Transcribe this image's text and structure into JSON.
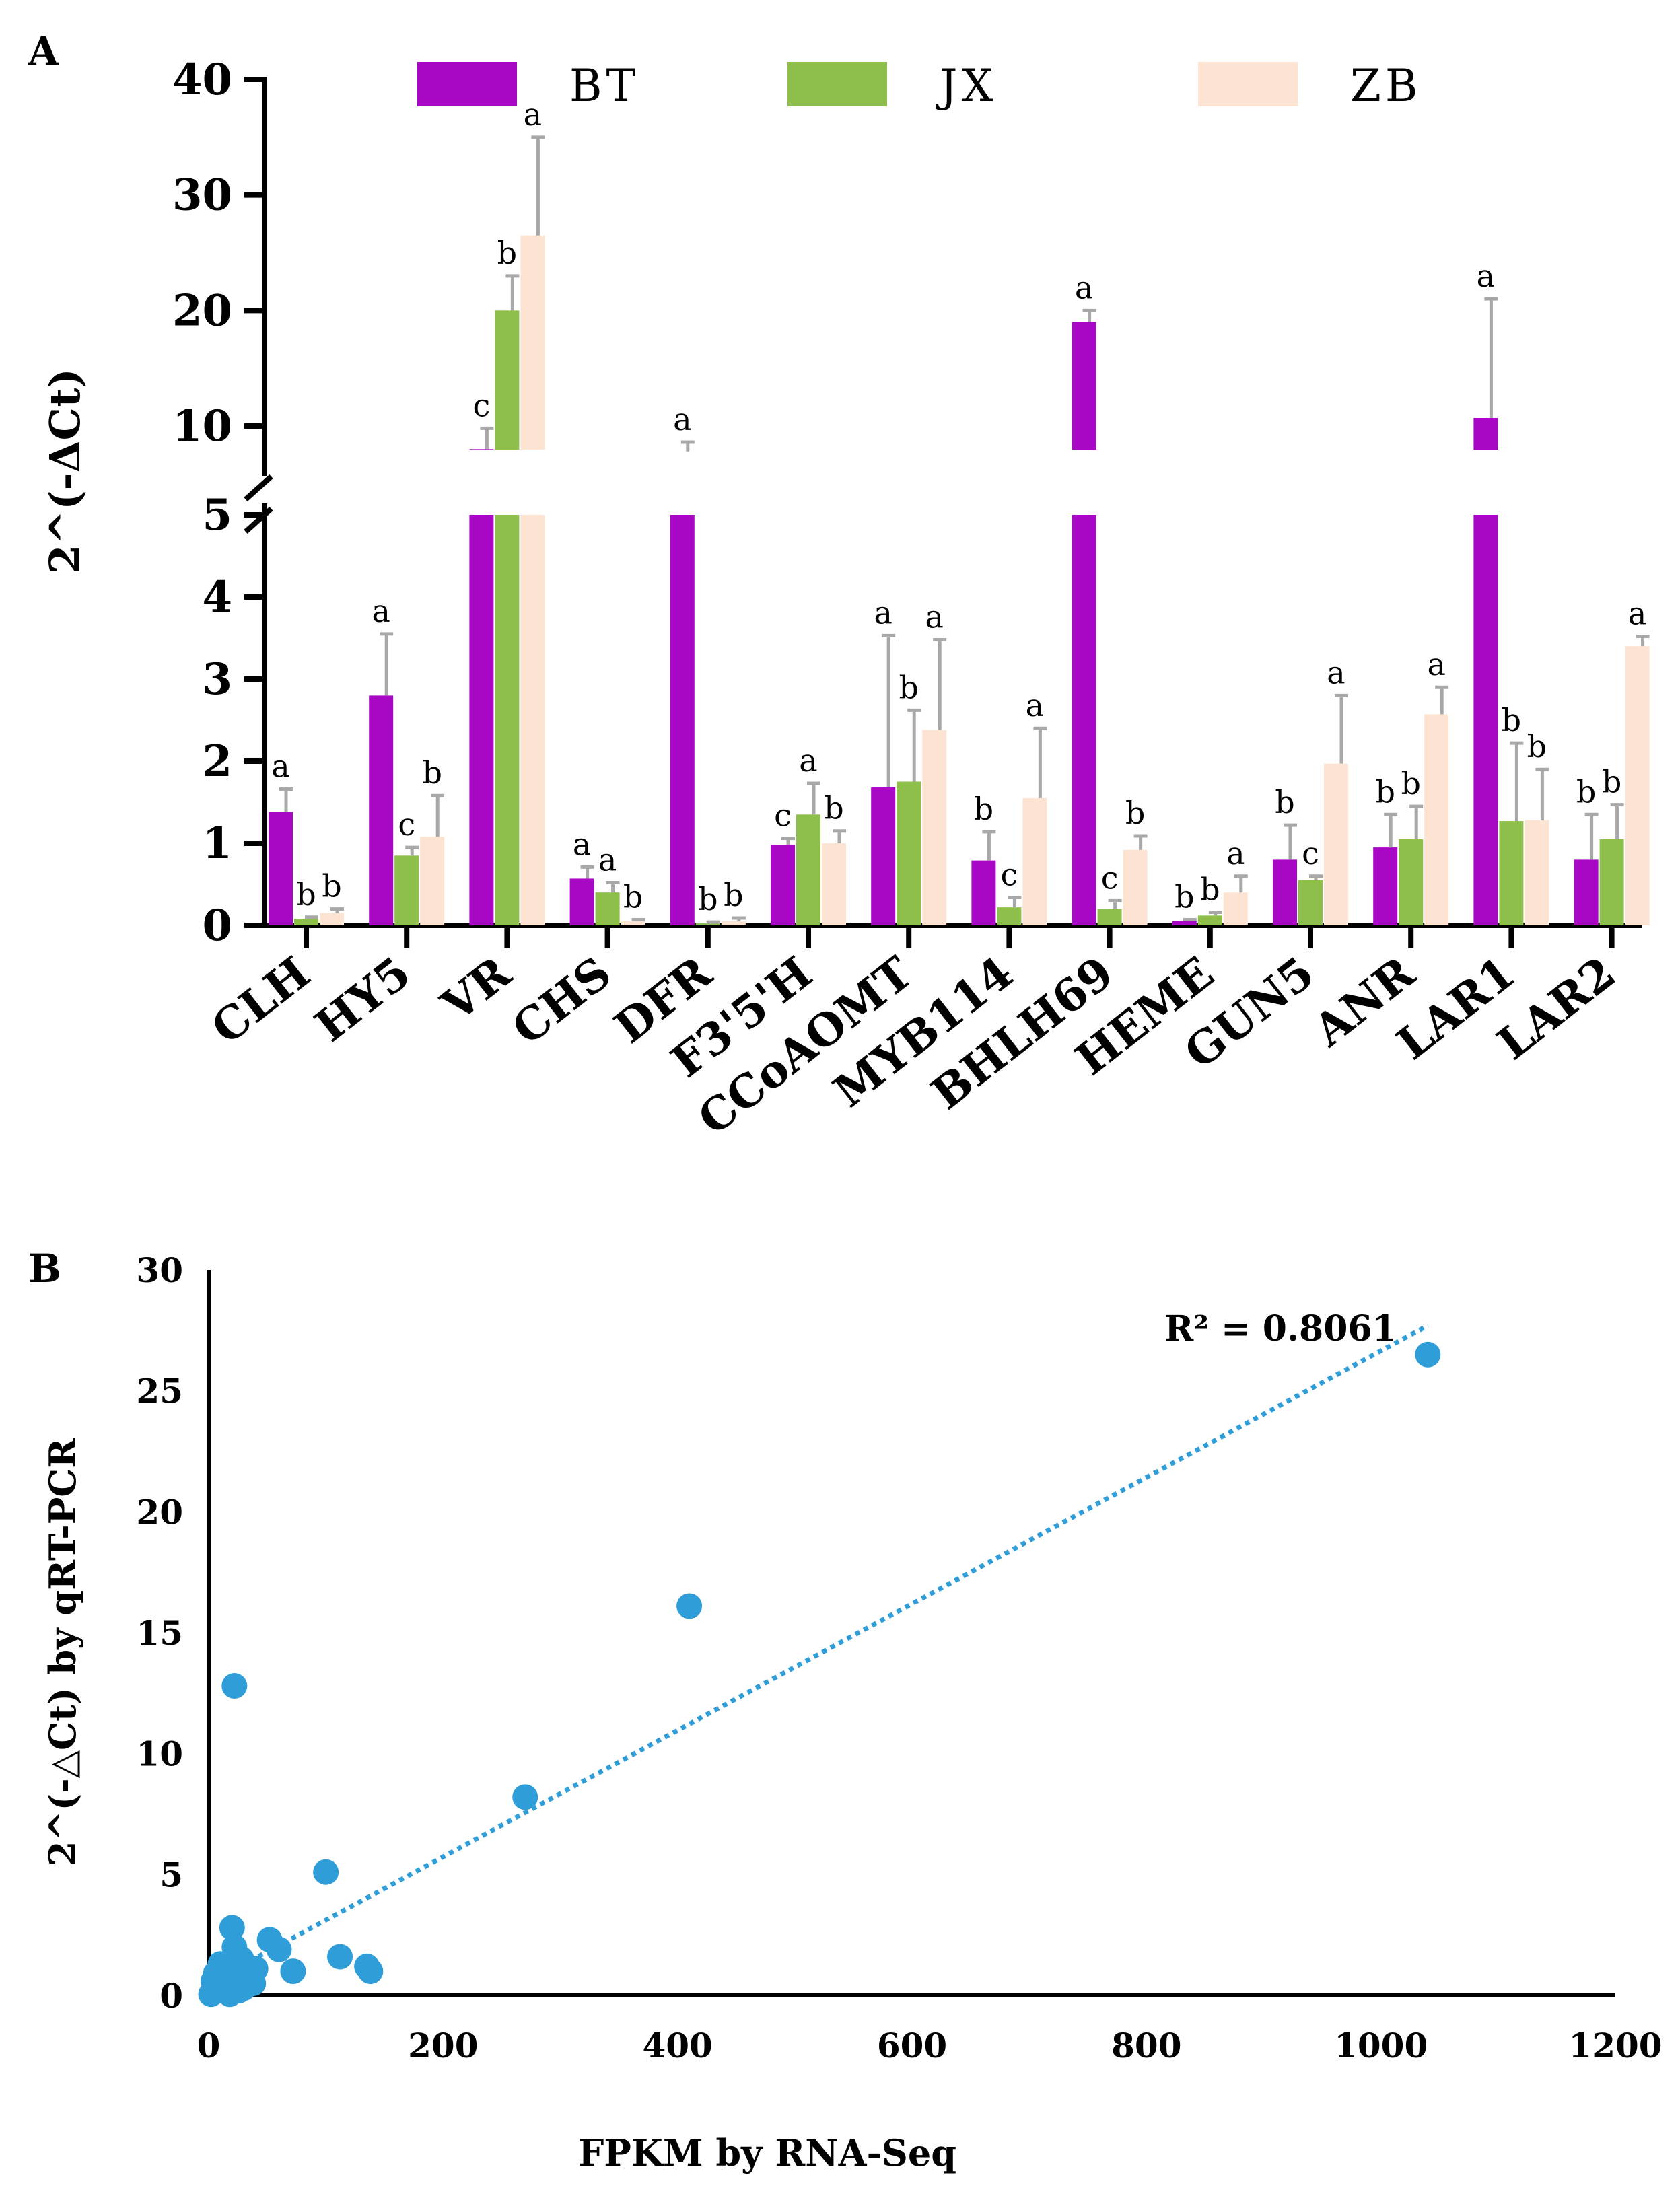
{
  "chart_data": [
    {
      "panel_label": "A",
      "type": "bar",
      "ylabel": "2^(-ΔCt)",
      "categories": [
        "CLH",
        "HY5",
        "VR",
        "CHS",
        "DFR",
        "F3'5'H",
        "CCoAOMT",
        "MYB114",
        "BHLH69",
        "HEME",
        "GUN5",
        "ANR",
        "LAR1",
        "LAR2"
      ],
      "axis_break": {
        "lower_range": [
          0,
          5
        ],
        "upper_range": [
          5,
          40
        ]
      },
      "lower_ticks": [
        "0",
        "1",
        "2",
        "3",
        "4",
        "5"
      ],
      "upper_ticks": [
        "10",
        "20",
        "30",
        "40"
      ],
      "legend": {
        "placement": "top",
        "entries": [
          "BT",
          "JX",
          "ZB"
        ]
      },
      "series": [
        {
          "name": "BT",
          "color": "#a808c6",
          "values": [
            1.38,
            2.8,
            8.0,
            0.57,
            7.8,
            0.98,
            1.68,
            0.79,
            19.0,
            0.05,
            0.8,
            0.95,
            10.7,
            0.8
          ],
          "errors": [
            0.28,
            0.75,
            1.8,
            0.14,
            0.8,
            0.08,
            1.85,
            0.35,
            1.0,
            0.02,
            0.42,
            0.4,
            10.3,
            0.55
          ],
          "letters": [
            "a",
            "a",
            "c",
            "a",
            "a",
            "c",
            "a",
            "b",
            "a",
            "b",
            "b",
            "b",
            "a",
            "b"
          ]
        },
        {
          "name": "JX",
          "color": "#8ebf4a",
          "values": [
            0.08,
            0.85,
            20.0,
            0.4,
            0.03,
            1.35,
            1.75,
            0.22,
            0.2,
            0.12,
            0.55,
            1.05,
            1.27,
            1.05
          ],
          "errors": [
            0.02,
            0.1,
            3.0,
            0.12,
            0.01,
            0.38,
            0.87,
            0.12,
            0.1,
            0.04,
            0.05,
            0.4,
            0.95,
            0.42
          ],
          "letters": [
            "b",
            "c",
            "b",
            "a",
            "b",
            "a",
            "b",
            "c",
            "c",
            "b",
            "c",
            "b",
            "b",
            "b"
          ]
        },
        {
          "name": "ZB",
          "color": "#fde3d2",
          "values": [
            0.15,
            1.08,
            26.5,
            0.05,
            0.05,
            1.0,
            2.38,
            1.55,
            0.92,
            0.4,
            1.97,
            2.57,
            1.28,
            3.4
          ],
          "errors": [
            0.05,
            0.5,
            8.5,
            0.02,
            0.04,
            0.15,
            1.1,
            0.85,
            0.17,
            0.2,
            0.83,
            0.33,
            0.62,
            0.12
          ],
          "letters": [
            "b",
            "b",
            "a",
            "b",
            "b",
            "b",
            "a",
            "a",
            "b",
            "a",
            "a",
            "a",
            "b",
            "a"
          ]
        }
      ]
    },
    {
      "panel_label": "B",
      "type": "scatter",
      "xlabel": "FPKM by RNA-Seq",
      "ylabel": "2^(-△Ct) by qRT-PCR",
      "xlim": [
        0,
        1200
      ],
      "ylim": [
        0,
        30
      ],
      "xticks": [
        "0",
        "200",
        "400",
        "600",
        "800",
        "1000",
        "1200"
      ],
      "yticks": [
        "0",
        "5",
        "10",
        "15",
        "20",
        "25",
        "30"
      ],
      "point_color": "#2f9ed8",
      "trendline": {
        "x": [
          0,
          1040
        ],
        "y": [
          0.5,
          27.7
        ],
        "color": "#2f9ed8",
        "r2_label": "R² = 0.8061"
      },
      "points": [
        [
          1040,
          26.5
        ],
        [
          410,
          16.1
        ],
        [
          22,
          12.8
        ],
        [
          270,
          8.2
        ],
        [
          100,
          5.1
        ],
        [
          20,
          2.8
        ],
        [
          52,
          2.3
        ],
        [
          60,
          1.9
        ],
        [
          22,
          2.0
        ],
        [
          112,
          1.6
        ],
        [
          135,
          1.2
        ],
        [
          138,
          1.0
        ],
        [
          72,
          1.0
        ],
        [
          28,
          1.5
        ],
        [
          10,
          1.3
        ],
        [
          40,
          1.1
        ],
        [
          35,
          0.8
        ],
        [
          5,
          0.5
        ],
        [
          12,
          0.7
        ],
        [
          18,
          0.9
        ],
        [
          25,
          0.6
        ],
        [
          30,
          0.3
        ],
        [
          3,
          0.1
        ],
        [
          8,
          0.2
        ],
        [
          15,
          0.4
        ],
        [
          20,
          0.15
        ],
        [
          38,
          0.5
        ],
        [
          2,
          0.05
        ],
        [
          6,
          0.9
        ],
        [
          14,
          1.1
        ],
        [
          26,
          0.2
        ],
        [
          32,
          1.0
        ],
        [
          11,
          0.3
        ],
        [
          22,
          0.6
        ],
        [
          4,
          0.6
        ],
        [
          18,
          0.05
        ],
        [
          28,
          0.9
        ],
        [
          9,
          0.8
        ]
      ]
    }
  ]
}
